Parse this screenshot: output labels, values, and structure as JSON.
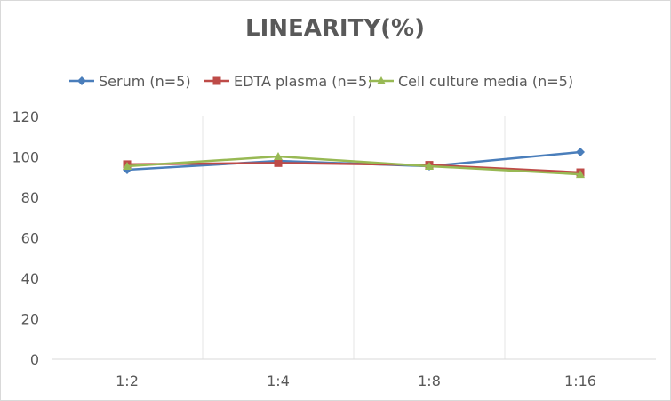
{
  "chart_data": {
    "type": "line",
    "title": "LINEARITY(%)",
    "categories": [
      "1:2",
      "1:4",
      "1:8",
      "1:16"
    ],
    "ylim": [
      0,
      120
    ],
    "yticks": [
      0,
      20,
      40,
      60,
      80,
      100,
      120
    ],
    "grid": "vertical",
    "legend": "top",
    "series": [
      {
        "name": "Serum (n=5)",
        "color": "#4a7ebb",
        "marker": "diamond",
        "values": [
          93.6,
          98,
          95.4,
          102.4
        ]
      },
      {
        "name": "EDTA plasma (n=5)",
        "color": "#be4b48",
        "marker": "square",
        "values": [
          96.3,
          97,
          96,
          92.3
        ]
      },
      {
        "name": "Cell culture media (n=5)",
        "color": "#98b954",
        "marker": "triangle",
        "values": [
          95.4,
          100.2,
          95.4,
          91.4
        ]
      }
    ]
  }
}
